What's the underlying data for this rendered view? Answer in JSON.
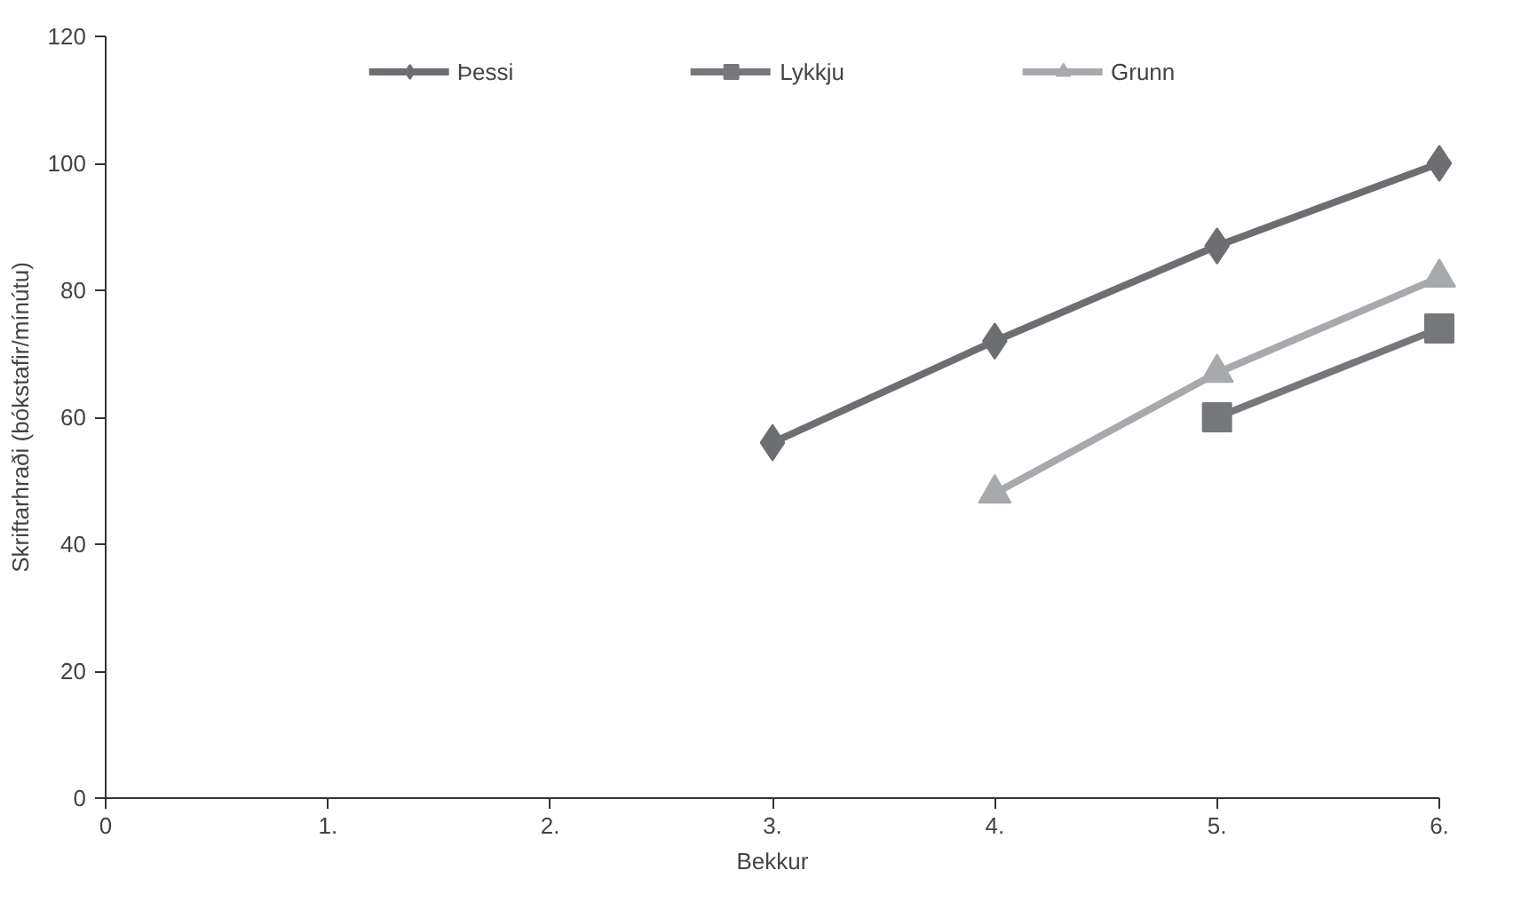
{
  "chart_data": {
    "type": "line",
    "xlabel": "Bekkur",
    "ylabel": "Skriftarhraði (bókstafir/mínútu)",
    "xlim": [
      0,
      6
    ],
    "xticks": [
      0,
      {
        "value": 1,
        "label": "1."
      },
      {
        "value": 2,
        "label": "2."
      },
      {
        "value": 3,
        "label": "3."
      },
      {
        "value": 4,
        "label": "4."
      },
      {
        "value": 5,
        "label": "5."
      },
      {
        "value": 6,
        "label": "6."
      }
    ],
    "ylim": [
      0,
      120
    ],
    "yticks": [
      0,
      20,
      40,
      60,
      80,
      100,
      120
    ],
    "grid": false,
    "legend": "top",
    "series": [
      {
        "name": "Þessi",
        "color": "#6d6e71",
        "marker": "diamond",
        "x": [
          3,
          4,
          5,
          6
        ],
        "values": [
          56,
          72,
          87,
          100
        ]
      },
      {
        "name": "Lykkju",
        "color": "#76777a",
        "marker": "square",
        "x": [
          5,
          6
        ],
        "values": [
          60,
          74
        ]
      },
      {
        "name": "Grunn",
        "color": "#a7a9ac",
        "marker": "triangle",
        "x": [
          4,
          5,
          6
        ],
        "values": [
          48,
          67,
          82
        ]
      }
    ]
  }
}
